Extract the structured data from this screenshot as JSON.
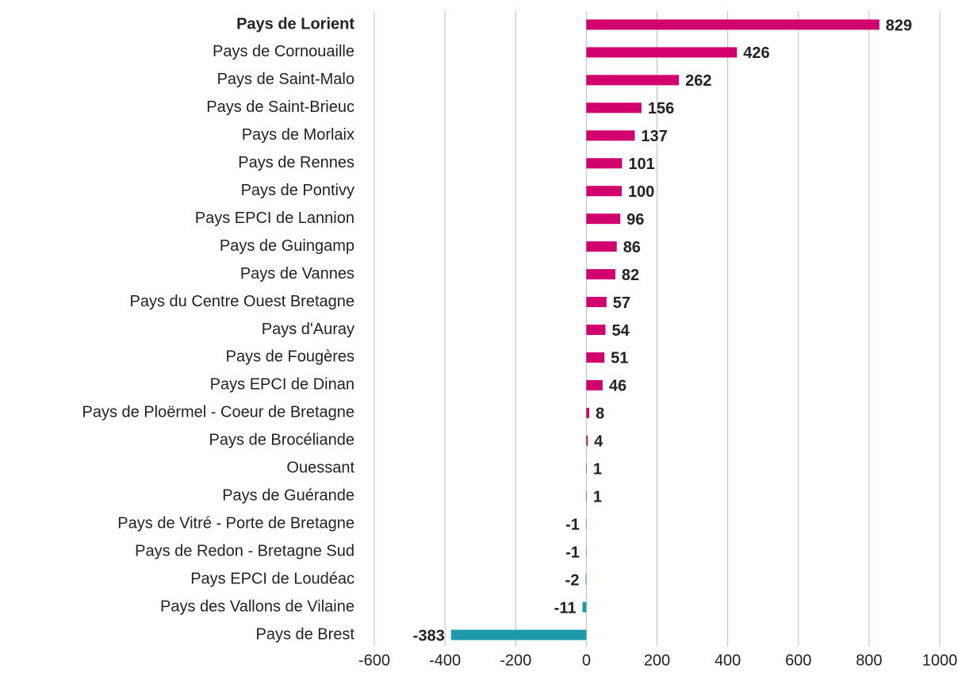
{
  "chart_data": {
    "type": "barh",
    "categories": [
      "Pays de Lorient",
      "Pays de Cornouaille",
      "Pays de Saint-Malo",
      "Pays de Saint-Brieuc",
      "Pays de Morlaix",
      "Pays de Rennes",
      "Pays de Pontivy",
      "Pays EPCI de Lannion",
      "Pays de Guingamp",
      "Pays de Vannes",
      "Pays du Centre Ouest Bretagne",
      "Pays d'Auray",
      "Pays de Fougères",
      "Pays EPCI de Dinan",
      "Pays de Ploërmel - Coeur de Bretagne",
      "Pays de Brocéliande",
      "Ouessant",
      "Pays de Guérande",
      "Pays de Vitré - Porte de Bretagne",
      "Pays de Redon - Bretagne Sud",
      "Pays EPCI de Loudéac",
      "Pays des Vallons de Vilaine",
      "Pays de Brest"
    ],
    "values": [
      829,
      426,
      262,
      156,
      137,
      101,
      100,
      96,
      86,
      82,
      57,
      54,
      51,
      46,
      8,
      4,
      1,
      1,
      -1,
      -1,
      -2,
      -11,
      -383
    ],
    "color_positive": "#d1006e",
    "color_negative": "#1b9aae",
    "highlight_index": 0,
    "xlim": [
      -600,
      1000
    ],
    "xticks": [
      -600,
      -400,
      -200,
      0,
      200,
      400,
      600,
      800,
      1000
    ],
    "grid": true
  }
}
